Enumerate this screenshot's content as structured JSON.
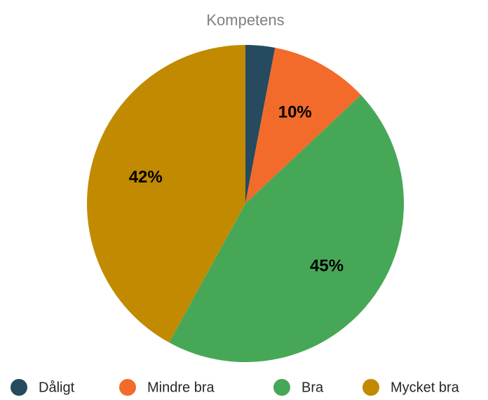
{
  "chart_data": {
    "type": "pie",
    "title": "Kompetens",
    "categories": [
      "Dåligt",
      "Mindre bra",
      "Bra",
      "Mycket bra"
    ],
    "values": [
      3,
      10,
      45,
      42
    ],
    "value_labels": [
      null,
      "10%",
      "45%",
      "42%"
    ],
    "colors": [
      "#264a5e",
      "#f26b2a",
      "#46a857",
      "#c18a00"
    ],
    "legend": "bottom"
  }
}
